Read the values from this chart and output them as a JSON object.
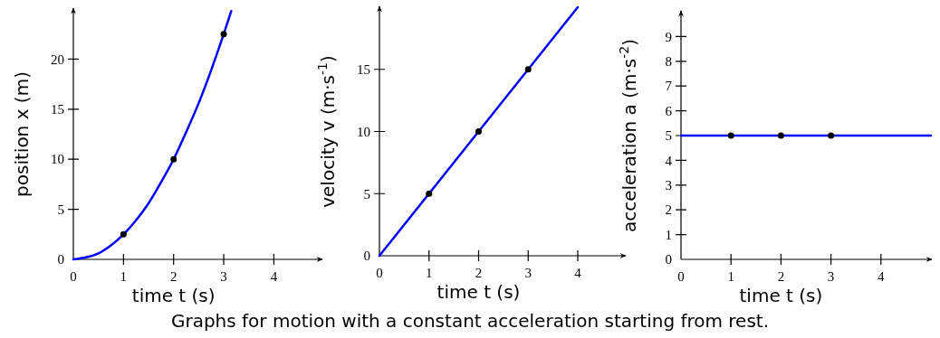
{
  "chart_data": [
    {
      "type": "line",
      "xlabel": "time t (s)",
      "ylabel": "position x (m)",
      "xlim": [
        0,
        4.95
      ],
      "xticks": [
        0,
        1,
        2,
        3,
        4
      ],
      "ylim": [
        0,
        25
      ],
      "yticks": [
        0,
        5,
        10,
        15,
        20
      ],
      "grid": false,
      "series": [
        {
          "color": "#0000ff",
          "x": [
            0,
            0.25,
            0.5,
            0.75,
            1,
            1.25,
            1.5,
            1.75,
            2,
            2.25,
            2.5,
            2.75,
            3,
            3.15
          ],
          "values": [
            0,
            0.2,
            0.6,
            1.4,
            2.5,
            3.9,
            5.6,
            7.7,
            10,
            12.7,
            15.6,
            18.9,
            22.5,
            24.8
          ]
        },
        {
          "type": "scatter",
          "color": "#000000",
          "marker": "circle",
          "x": [
            1,
            2,
            3
          ],
          "values": [
            2.5,
            10,
            22.5
          ]
        }
      ],
      "annotations": [
        "Graphs for motion with a constant acceleration starting from rest."
      ]
    },
    {
      "type": "line",
      "xlabel": "time t (s)",
      "ylabel": "velocity v (m·s$^{-1}$)",
      "xlim": [
        0,
        4.95
      ],
      "xticks": [
        0,
        1,
        2,
        3,
        4
      ],
      "ylim": [
        0,
        20
      ],
      "yticks": [
        0,
        5,
        10,
        15
      ],
      "grid": false,
      "series": [
        {
          "color": "#0000ff",
          "x": [
            0,
            4
          ],
          "values": [
            0,
            20
          ]
        },
        {
          "type": "scatter",
          "color": "#000000",
          "marker": "circle",
          "x": [
            1,
            2,
            3
          ],
          "values": [
            5,
            10,
            15
          ]
        }
      ]
    },
    {
      "type": "line",
      "xlabel": "time t (s)",
      "ylabel": "acceleration a (m·s$^{-2}$)",
      "xlim": [
        0,
        5
      ],
      "xticks": [
        0,
        1,
        2,
        3,
        4
      ],
      "ylim": [
        0,
        10
      ],
      "yticks": [
        0,
        1,
        2,
        3,
        4,
        5,
        6,
        7,
        8,
        9
      ],
      "grid": false,
      "series": [
        {
          "color": "#0000ff",
          "x": [
            0,
            5
          ],
          "values": [
            5,
            5
          ]
        },
        {
          "type": "scatter",
          "color": "#000000",
          "marker": "circle",
          "x": [
            1,
            2,
            3
          ],
          "values": [
            5,
            5,
            5
          ]
        }
      ]
    }
  ]
}
